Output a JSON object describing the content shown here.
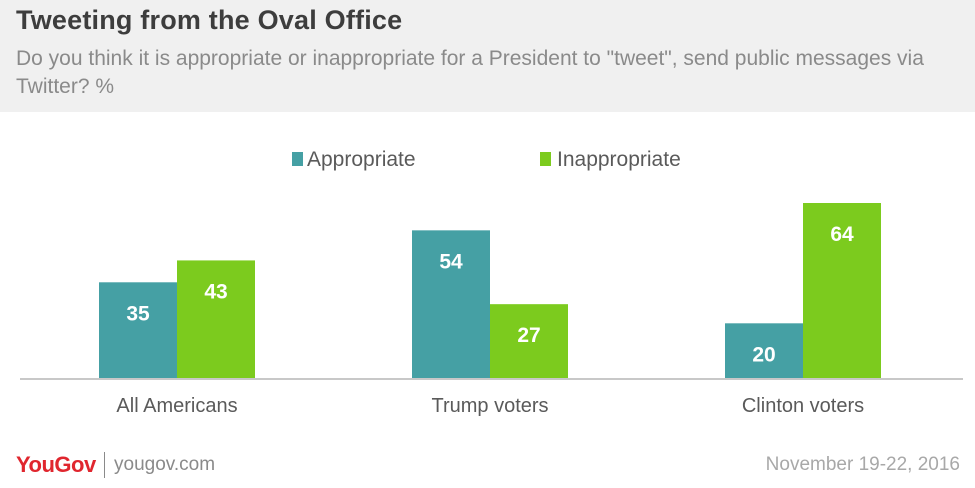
{
  "header": {
    "title": "Tweeting from the Oval Office",
    "subtitle": "Do you think it is appropriate or inappropriate for a President to \"tweet\", send public messages via Twitter? %"
  },
  "footer": {
    "brand": "YouGov",
    "site": "yougov.com",
    "date": "November 19-22, 2016"
  },
  "colors": {
    "appropriate": "#45a0a4",
    "inappropriate": "#7ccb1e"
  },
  "chart_data": {
    "type": "bar",
    "categories": [
      "All Americans",
      "Trump voters",
      "Clinton voters"
    ],
    "series": [
      {
        "name": "Appropriate",
        "values": [
          35,
          54,
          20
        ]
      },
      {
        "name": "Inappropriate",
        "values": [
          43,
          27,
          64
        ]
      }
    ],
    "ylim": [
      0,
      64
    ],
    "legend": "top-center",
    "grid": false
  }
}
